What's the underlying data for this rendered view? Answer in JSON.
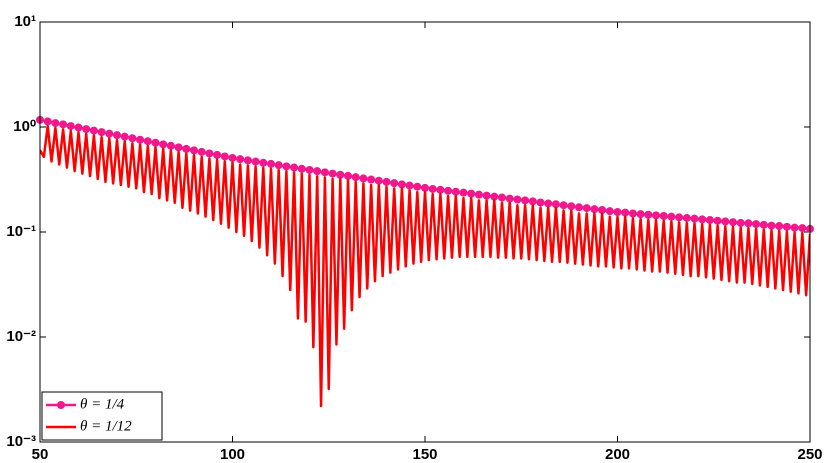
{
  "chart_data": {
    "type": "line",
    "yscale": "log",
    "legend": "lower left",
    "grid": false,
    "xlim": [
      50,
      250
    ],
    "xticks": [
      50,
      100,
      150,
      200,
      250
    ],
    "ylim": [
      0.001,
      10
    ],
    "yticks": [
      {
        "value": 0.001,
        "label": "10⁻³"
      },
      {
        "value": 0.01,
        "label": "10⁻²"
      },
      {
        "value": 0.1,
        "label": "10⁻¹"
      },
      {
        "value": 1,
        "label": "10⁰"
      },
      {
        "value": 10,
        "label": "10¹"
      }
    ],
    "series": [
      {
        "name": "θ = 1/4",
        "color": "#f0188c",
        "marker": "circle",
        "x": [
          50,
          52,
          54,
          56,
          58,
          60,
          62,
          64,
          66,
          68,
          70,
          72,
          74,
          76,
          78,
          80,
          82,
          84,
          86,
          88,
          90,
          92,
          94,
          96,
          98,
          100,
          102,
          104,
          106,
          108,
          110,
          112,
          114,
          116,
          118,
          120,
          122,
          124,
          126,
          128,
          130,
          132,
          134,
          136,
          138,
          140,
          142,
          144,
          146,
          148,
          150,
          152,
          154,
          156,
          158,
          160,
          162,
          164,
          166,
          168,
          170,
          172,
          174,
          176,
          178,
          180,
          182,
          184,
          186,
          188,
          190,
          192,
          194,
          196,
          198,
          200,
          202,
          204,
          206,
          208,
          210,
          212,
          214,
          216,
          218,
          220,
          222,
          224,
          226,
          228,
          230,
          232,
          234,
          236,
          238,
          240,
          242,
          244,
          246,
          248,
          250
        ],
        "values": [
          1.17,
          1.13,
          1.09,
          1.06,
          1.02,
          0.988,
          0.955,
          0.924,
          0.894,
          0.864,
          0.836,
          0.809,
          0.782,
          0.756,
          0.732,
          0.708,
          0.684,
          0.662,
          0.64,
          0.619,
          0.599,
          0.579,
          0.56,
          0.542,
          0.524,
          0.507,
          0.494,
          0.481,
          0.469,
          0.456,
          0.445,
          0.433,
          0.422,
          0.411,
          0.4,
          0.39,
          0.38,
          0.37,
          0.36,
          0.351,
          0.342,
          0.333,
          0.324,
          0.316,
          0.308,
          0.3,
          0.292,
          0.284,
          0.277,
          0.27,
          0.263,
          0.257,
          0.252,
          0.247,
          0.242,
          0.237,
          0.232,
          0.227,
          0.222,
          0.217,
          0.213,
          0.208,
          0.204,
          0.2,
          0.196,
          0.191,
          0.187,
          0.184,
          0.18,
          0.176,
          0.172,
          0.169,
          0.165,
          0.162,
          0.158,
          0.155,
          0.153,
          0.15,
          0.148,
          0.146,
          0.144,
          0.142,
          0.14,
          0.138,
          0.136,
          0.134,
          0.132,
          0.13,
          0.128,
          0.126,
          0.124,
          0.122,
          0.121,
          0.119,
          0.117,
          0.115,
          0.114,
          0.112,
          0.11,
          0.109,
          0.107
        ]
      },
      {
        "name": "θ = 1/12",
        "color": "#ff0000",
        "x": [
          50,
          51,
          52,
          53,
          54,
          55,
          56,
          57,
          58,
          59,
          60,
          61,
          62,
          63,
          64,
          65,
          66,
          67,
          68,
          69,
          70,
          71,
          72,
          73,
          74,
          75,
          76,
          77,
          78,
          79,
          80,
          81,
          82,
          83,
          84,
          85,
          86,
          87,
          88,
          89,
          90,
          91,
          92,
          93,
          94,
          95,
          96,
          97,
          98,
          99,
          100,
          101,
          102,
          103,
          104,
          105,
          106,
          107,
          108,
          109,
          110,
          111,
          112,
          113,
          114,
          115,
          116,
          117,
          118,
          119,
          120,
          121,
          122,
          123,
          124,
          125,
          126,
          127,
          128,
          129,
          130,
          131,
          132,
          133,
          134,
          135,
          136,
          137,
          138,
          139,
          140,
          141,
          142,
          143,
          144,
          145,
          146,
          147,
          148,
          149,
          150,
          151,
          152,
          153,
          154,
          155,
          156,
          157,
          158,
          159,
          160,
          161,
          162,
          163,
          164,
          165,
          166,
          167,
          168,
          169,
          170,
          171,
          172,
          173,
          174,
          175,
          176,
          177,
          178,
          179,
          180,
          181,
          182,
          183,
          184,
          185,
          186,
          187,
          188,
          189,
          190,
          191,
          192,
          193,
          194,
          195,
          196,
          197,
          198,
          199,
          200,
          201,
          202,
          203,
          204,
          205,
          206,
          207,
          208,
          209,
          210,
          211,
          212,
          213,
          214,
          215,
          216,
          217,
          218,
          219,
          220,
          221,
          222,
          223,
          224,
          225,
          226,
          227,
          228,
          229,
          230,
          231,
          232,
          233,
          234,
          235,
          236,
          237,
          238,
          239,
          240,
          241,
          242,
          243,
          244,
          245,
          246,
          247,
          248,
          249,
          250
        ],
        "values": [
          0.6,
          0.52,
          1.02,
          0.47,
          0.98,
          0.44,
          0.95,
          0.41,
          0.92,
          0.38,
          0.89,
          0.36,
          0.86,
          0.34,
          0.83,
          0.32,
          0.8,
          0.3,
          0.78,
          0.29,
          0.75,
          0.28,
          0.73,
          0.27,
          0.7,
          0.26,
          0.68,
          0.24,
          0.66,
          0.23,
          0.64,
          0.21,
          0.62,
          0.2,
          0.6,
          0.19,
          0.58,
          0.17,
          0.56,
          0.16,
          0.54,
          0.15,
          0.52,
          0.14,
          0.5,
          0.13,
          0.49,
          0.12,
          0.47,
          0.11,
          0.46,
          0.1,
          0.44,
          0.092,
          0.43,
          0.082,
          0.42,
          0.071,
          0.41,
          0.06,
          0.4,
          0.05,
          0.39,
          0.038,
          0.38,
          0.028,
          0.37,
          0.015,
          0.36,
          0.014,
          0.35,
          0.008,
          0.34,
          0.0022,
          0.33,
          0.0032,
          0.32,
          0.0085,
          0.32,
          0.012,
          0.31,
          0.018,
          0.3,
          0.024,
          0.29,
          0.029,
          0.28,
          0.034,
          0.28,
          0.038,
          0.27,
          0.041,
          0.26,
          0.044,
          0.26,
          0.047,
          0.25,
          0.05,
          0.24,
          0.052,
          0.24,
          0.054,
          0.23,
          0.055,
          0.23,
          0.056,
          0.22,
          0.057,
          0.22,
          0.058,
          0.21,
          0.058,
          0.21,
          0.058,
          0.2,
          0.058,
          0.2,
          0.058,
          0.2,
          0.057,
          0.19,
          0.057,
          0.19,
          0.056,
          0.18,
          0.056,
          0.18,
          0.055,
          0.18,
          0.054,
          0.17,
          0.053,
          0.17,
          0.052,
          0.17,
          0.052,
          0.16,
          0.051,
          0.16,
          0.05,
          0.15,
          0.049,
          0.15,
          0.048,
          0.15,
          0.047,
          0.15,
          0.047,
          0.14,
          0.046,
          0.14,
          0.045,
          0.14,
          0.045,
          0.135,
          0.044,
          0.133,
          0.043,
          0.131,
          0.042,
          0.13,
          0.042,
          0.128,
          0.041,
          0.126,
          0.04,
          0.124,
          0.039,
          0.122,
          0.038,
          0.121,
          0.038,
          0.119,
          0.037,
          0.117,
          0.036,
          0.115,
          0.035,
          0.113,
          0.034,
          0.112,
          0.033,
          0.11,
          0.033,
          0.109,
          0.032,
          0.107,
          0.031,
          0.105,
          0.03,
          0.104,
          0.029,
          0.103,
          0.028,
          0.101,
          0.027,
          0.099,
          0.026,
          0.098,
          0.025,
          0.096
        ]
      }
    ]
  }
}
